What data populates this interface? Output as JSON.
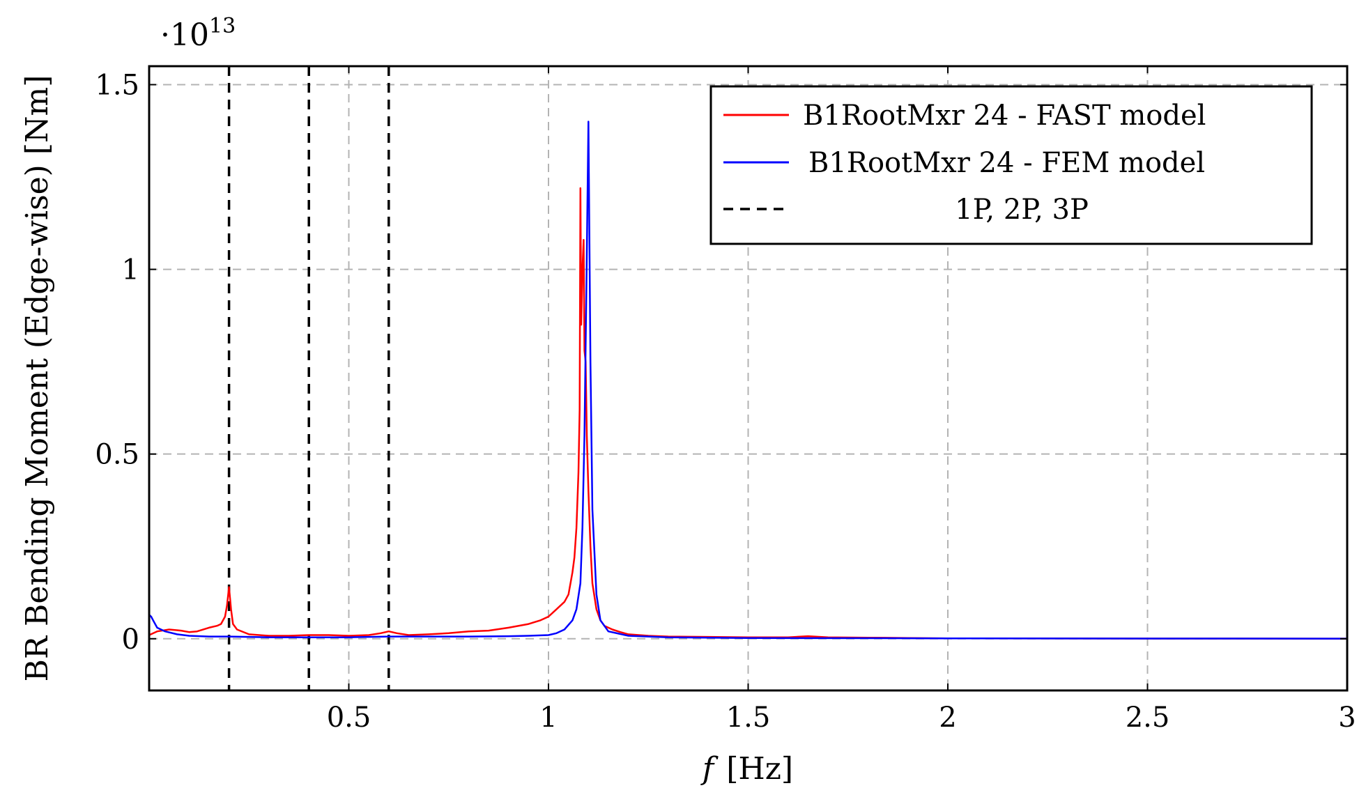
{
  "chart_data": {
    "type": "line",
    "xlabel_var": "f",
    "xlabel_unit": "[Hz]",
    "ylabel": "BR Bending Moment (Edge-wise) [Nm]",
    "y_scale_label": "·10",
    "y_scale_exponent": "13",
    "xlim": [
      0,
      3
    ],
    "ylim": [
      -0.14,
      1.55
    ],
    "x_ticks": [
      {
        "value": 0.5,
        "label": "0.5"
      },
      {
        "value": 1,
        "label": "1"
      },
      {
        "value": 1.5,
        "label": "1.5"
      },
      {
        "value": 2,
        "label": "2"
      },
      {
        "value": 2.5,
        "label": "2.5"
      },
      {
        "value": 3,
        "label": "3"
      }
    ],
    "y_ticks": [
      {
        "value": 0,
        "label": "0"
      },
      {
        "value": 0.5,
        "label": "0.5"
      },
      {
        "value": 1,
        "label": "1"
      },
      {
        "value": 1.5,
        "label": "1.5"
      }
    ],
    "grid": true,
    "legend_position": "top-right",
    "series": [
      {
        "name": "B1RootMxr 24 - FAST model",
        "color": "#ff0000",
        "x": [
          0.0,
          0.02,
          0.05,
          0.08,
          0.1,
          0.12,
          0.15,
          0.17,
          0.18,
          0.19,
          0.195,
          0.2,
          0.205,
          0.21,
          0.22,
          0.25,
          0.3,
          0.35,
          0.4,
          0.45,
          0.5,
          0.55,
          0.58,
          0.6,
          0.62,
          0.65,
          0.7,
          0.75,
          0.8,
          0.85,
          0.9,
          0.95,
          0.98,
          1.0,
          1.02,
          1.04,
          1.05,
          1.06,
          1.065,
          1.07,
          1.075,
          1.078,
          1.08,
          1.082,
          1.085,
          1.088,
          1.09,
          1.093,
          1.096,
          1.1,
          1.105,
          1.11,
          1.12,
          1.13,
          1.14,
          1.16,
          1.18,
          1.2,
          1.25,
          1.3,
          1.4,
          1.5,
          1.6,
          1.65,
          1.7,
          1.8,
          1.9,
          2.0,
          2.5,
          3.0
        ],
        "y": [
          0.01,
          0.02,
          0.025,
          0.022,
          0.018,
          0.02,
          0.03,
          0.035,
          0.04,
          0.06,
          0.09,
          0.14,
          0.08,
          0.04,
          0.025,
          0.012,
          0.008,
          0.008,
          0.01,
          0.01,
          0.008,
          0.01,
          0.015,
          0.02,
          0.015,
          0.01,
          0.012,
          0.015,
          0.02,
          0.022,
          0.03,
          0.04,
          0.05,
          0.06,
          0.08,
          0.1,
          0.12,
          0.18,
          0.22,
          0.3,
          0.45,
          0.62,
          1.22,
          0.85,
          1.0,
          1.08,
          0.78,
          0.75,
          0.55,
          0.4,
          0.25,
          0.15,
          0.08,
          0.05,
          0.035,
          0.025,
          0.018,
          0.012,
          0.008,
          0.006,
          0.005,
          0.004,
          0.004,
          0.007,
          0.004,
          0.003,
          0.002,
          0.001,
          0.0005,
          0.0003
        ]
      },
      {
        "name": "B1RootMxr 24 - FEM model",
        "color": "#0000ff",
        "x": [
          0.0,
          0.005,
          0.01,
          0.02,
          0.04,
          0.07,
          0.1,
          0.15,
          0.2,
          0.25,
          0.3,
          0.4,
          0.5,
          0.6,
          0.7,
          0.8,
          0.9,
          0.95,
          1.0,
          1.02,
          1.04,
          1.06,
          1.07,
          1.08,
          1.085,
          1.09,
          1.095,
          1.1,
          1.105,
          1.11,
          1.12,
          1.13,
          1.15,
          1.2,
          1.3,
          1.5,
          2.0,
          2.5,
          3.0
        ],
        "y": [
          0.065,
          0.06,
          0.05,
          0.03,
          0.02,
          0.012,
          0.008,
          0.006,
          0.006,
          0.005,
          0.004,
          0.004,
          0.004,
          0.006,
          0.006,
          0.006,
          0.007,
          0.008,
          0.01,
          0.015,
          0.025,
          0.05,
          0.08,
          0.15,
          0.3,
          0.55,
          0.95,
          1.4,
          0.75,
          0.35,
          0.12,
          0.05,
          0.02,
          0.008,
          0.004,
          0.002,
          0.001,
          0.0005,
          0.0003
        ]
      }
    ],
    "reference_lines": {
      "name": "1P, 2P, 3P",
      "color": "#000000",
      "x": [
        0.2,
        0.4,
        0.6
      ]
    }
  }
}
